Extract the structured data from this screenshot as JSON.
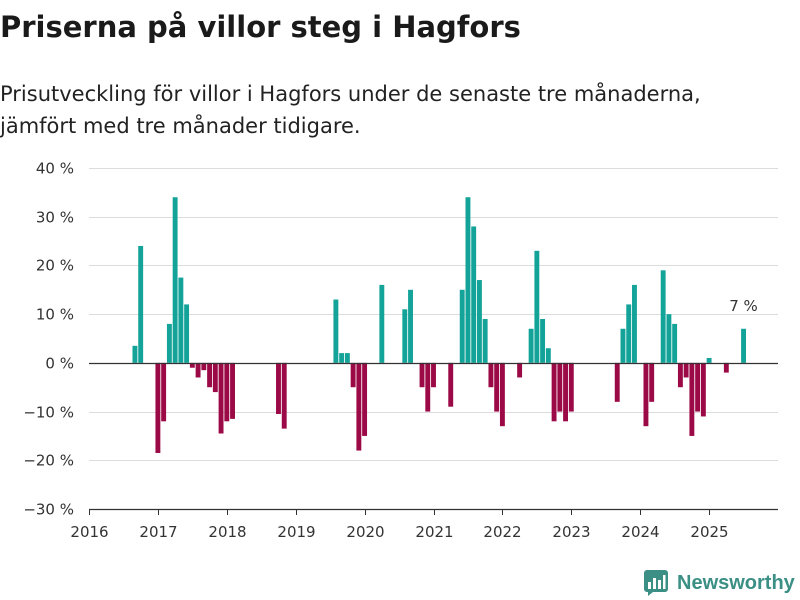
{
  "chart_data": {
    "type": "bar",
    "title": "Priserna på villor steg i Hagfors",
    "subtitle": "Prisutveckling för villor i Hagfors under de senaste tre månaderna, jämfört med tre månader tidigare.",
    "x": [
      "2016-09",
      "2016-10",
      "2017-01",
      "2017-02",
      "2017-03",
      "2017-04",
      "2017-05",
      "2017-06",
      "2017-07",
      "2017-08",
      "2017-09",
      "2017-10",
      "2017-11",
      "2017-12",
      "2018-01",
      "2018-02",
      "2018-10",
      "2018-11",
      "2019-08",
      "2019-09",
      "2019-10",
      "2019-11",
      "2019-12",
      "2020-01",
      "2020-04",
      "2020-08",
      "2020-09",
      "2020-11",
      "2020-12",
      "2021-01",
      "2021-04",
      "2021-06",
      "2021-07",
      "2021-08",
      "2021-09",
      "2021-10",
      "2021-11",
      "2021-12",
      "2022-01",
      "2022-04",
      "2022-06",
      "2022-07",
      "2022-08",
      "2022-09",
      "2022-10",
      "2022-11",
      "2022-12",
      "2023-01",
      "2023-09",
      "2023-10",
      "2023-11",
      "2023-12",
      "2024-02",
      "2024-03",
      "2024-05",
      "2024-06",
      "2024-07",
      "2024-08",
      "2024-09",
      "2024-10",
      "2024-11",
      "2024-12",
      "2025-01",
      "2025-04",
      "2025-07"
    ],
    "y": [
      3.5,
      24,
      -18.5,
      -12,
      8,
      34,
      17.5,
      12,
      -1,
      -3,
      -1.5,
      -5,
      -6,
      -14.5,
      -12,
      -11.5,
      -10.5,
      -13.5,
      13,
      2,
      2,
      -5,
      -18,
      -15,
      16,
      11,
      15,
      -5,
      -10,
      -5,
      -9,
      15,
      34,
      28,
      17,
      9,
      -5,
      -10,
      -13,
      -3,
      7,
      23,
      9,
      3,
      -12,
      -10,
      -12,
      -10,
      -8,
      7,
      12,
      16,
      -13,
      -8,
      19,
      10,
      8,
      -5,
      -3,
      -15,
      -10,
      -11,
      1,
      -2,
      7
    ],
    "xlim": [
      "2016-01",
      "2026-01"
    ],
    "ylim": [
      -30,
      40
    ],
    "yticks": [
      40,
      30,
      20,
      10,
      0,
      -10,
      -20,
      -30
    ],
    "ytick_labels": [
      "40 %",
      "30 %",
      "20 %",
      "10 %",
      "0 %",
      "−10 %",
      "−20 %",
      "−30 %"
    ],
    "xtick_labels": [
      "2016",
      "2017",
      "2018",
      "2019",
      "2020",
      "2021",
      "2022",
      "2023",
      "2024",
      "2025"
    ],
    "annotations": [
      {
        "text": "7 %",
        "x": "2025-07",
        "y": 7
      }
    ],
    "grid": true,
    "colors": {
      "increase": "#14a399",
      "decrease": "#9b0a46"
    }
  },
  "logo": {
    "text": "Newsworthy",
    "icon": "newsworthy-bar-chart-icon",
    "color": "#3b8f84"
  }
}
